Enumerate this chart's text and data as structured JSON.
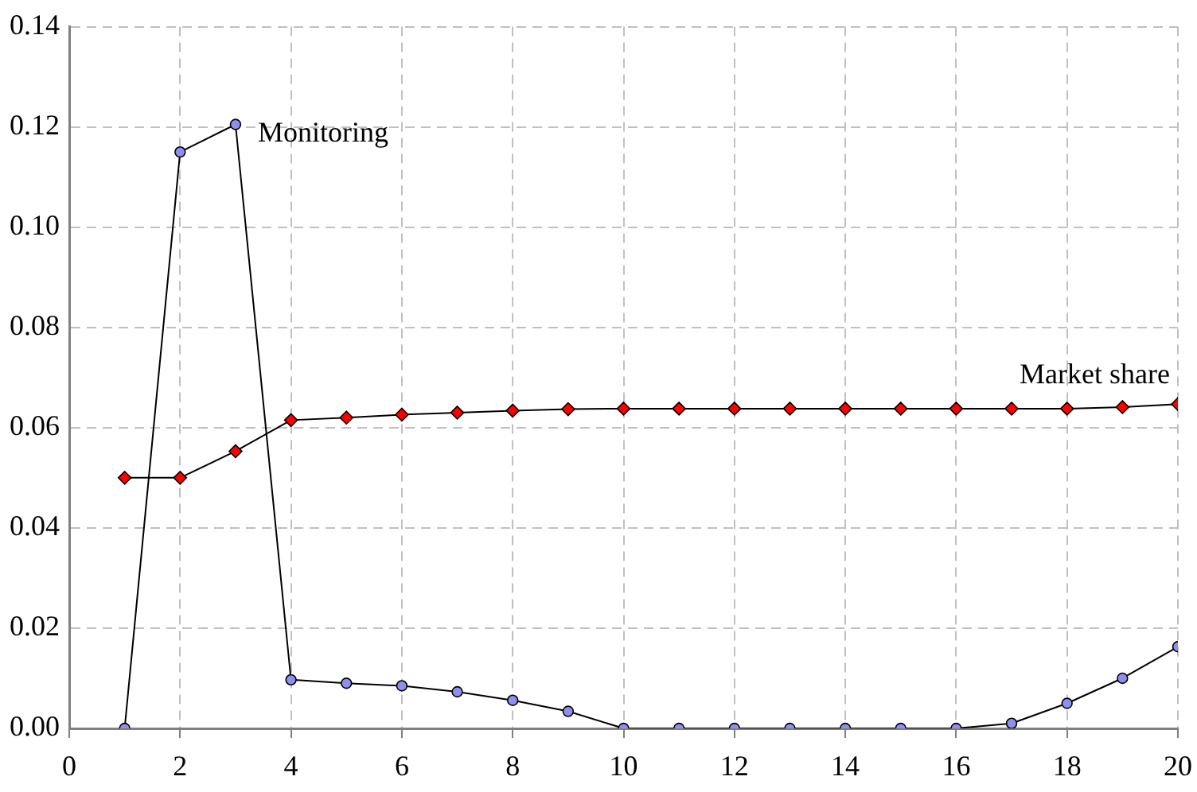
{
  "chart_data": {
    "type": "line",
    "x": [
      1,
      2,
      3,
      4,
      5,
      6,
      7,
      8,
      9,
      10,
      11,
      12,
      13,
      14,
      15,
      16,
      17,
      18,
      19,
      20
    ],
    "series": [
      {
        "name": "Monitoring",
        "color": "#8f8fef",
        "marker": "circle",
        "values": [
          0,
          0.115,
          0.1205,
          0.0097,
          0.009,
          0.0085,
          0.0073,
          0.0056,
          0.0034,
          0,
          0,
          0,
          0,
          0,
          0,
          0,
          0.001,
          0.005,
          0.01,
          0.0163
        ]
      },
      {
        "name": "Market share",
        "color": "#ff0000",
        "marker": "diamond",
        "values": [
          0.05,
          0.05,
          0.0553,
          0.0615,
          0.062,
          0.0626,
          0.063,
          0.0634,
          0.0637,
          0.0638,
          0.0638,
          0.0638,
          0.0638,
          0.0638,
          0.0638,
          0.0638,
          0.0638,
          0.0638,
          0.0641,
          0.0647
        ]
      }
    ],
    "xlim": [
      0,
      20
    ],
    "xticks": [
      0,
      2,
      4,
      6,
      8,
      10,
      12,
      14,
      16,
      18,
      20
    ],
    "ylim": [
      0,
      0.14
    ],
    "yticks": [
      {
        "value": 0,
        "label": "0.00"
      },
      {
        "value": 0.02,
        "label": "0.02"
      },
      {
        "value": 0.04,
        "label": "0.04"
      },
      {
        "value": 0.06,
        "label": "0.06"
      },
      {
        "value": 0.08,
        "label": "0.08"
      },
      {
        "value": 0.1,
        "label": "0.10"
      },
      {
        "value": 0.12,
        "label": "0.12"
      },
      {
        "value": 0.14,
        "label": "0.14"
      }
    ],
    "grid": true,
    "legend": false,
    "line_style": "solid"
  }
}
